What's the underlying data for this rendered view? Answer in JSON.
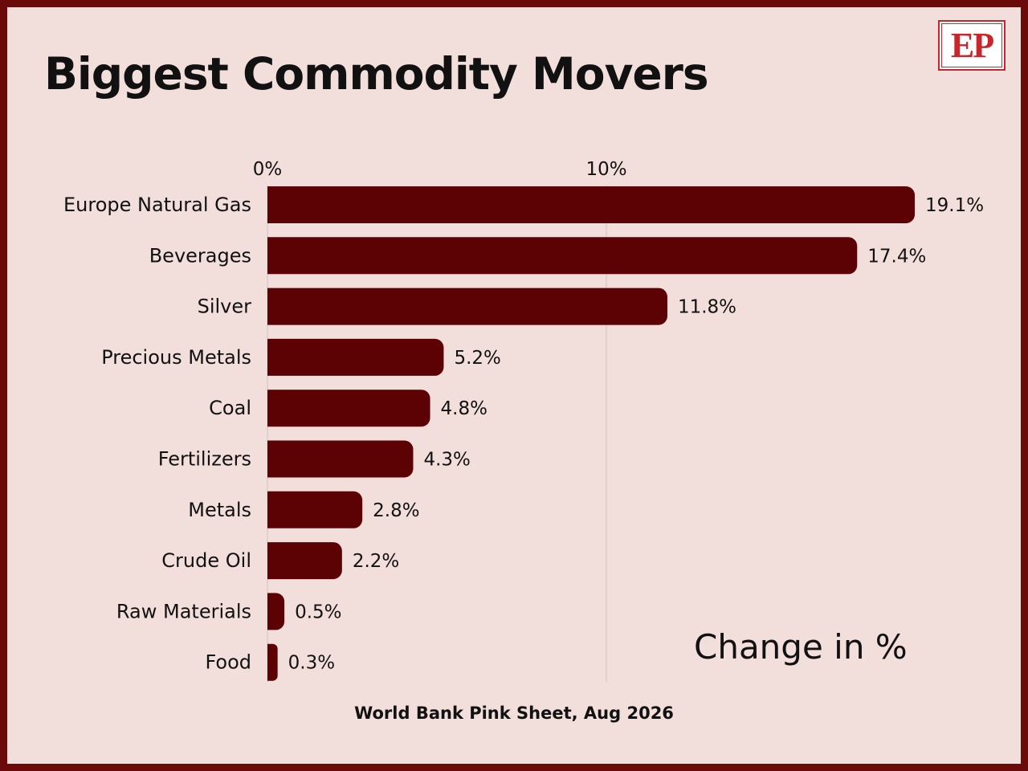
{
  "title": "Biggest Commodity Movers",
  "logo": {
    "text": "EP",
    "color": "#c8262c"
  },
  "source": "World Bank Pink Sheet, Aug 2026",
  "note": "Change in %",
  "colors": {
    "bar": "#5c0104",
    "background": "#f2dedb",
    "border": "#6b0a0a",
    "text": "#111111",
    "gridline": "#d3c3c0"
  },
  "chart_data": {
    "type": "bar",
    "orientation": "horizontal",
    "title": "Biggest Commodity Movers",
    "xlabel": "Change in %",
    "ylabel": "",
    "xlim": [
      0,
      19.1
    ],
    "xticks": [
      {
        "value": 0,
        "label": "0%"
      },
      {
        "value": 10,
        "label": "10%"
      }
    ],
    "grid": true,
    "categories": [
      "Europe Natural Gas",
      "Beverages",
      "Silver",
      "Precious Metals",
      "Coal",
      "Fertilizers",
      "Metals",
      "Crude Oil",
      "Raw Materials",
      "Food"
    ],
    "values": [
      19.1,
      17.4,
      11.8,
      5.2,
      4.8,
      4.3,
      2.8,
      2.2,
      0.5,
      0.3
    ],
    "value_labels": [
      "19.1%",
      "17.4%",
      "11.8%",
      "5.2%",
      "4.8%",
      "4.3%",
      "2.8%",
      "2.2%",
      "0.5%",
      "0.3%"
    ]
  }
}
